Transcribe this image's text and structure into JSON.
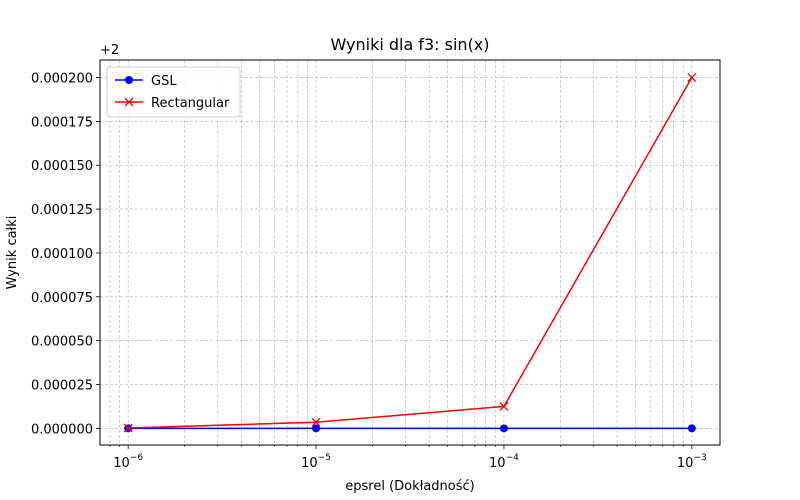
{
  "chart_data": {
    "type": "line",
    "title": "Wyniki dla f3: sin(x)",
    "xlabel": "epsrel (Dokładność)",
    "ylabel": "Wynik całki",
    "xscale": "log",
    "x": [
      1e-06,
      1e-05,
      0.0001,
      0.001
    ],
    "xticks": [
      {
        "base": "10",
        "exp": "−6"
      },
      {
        "base": "10",
        "exp": "−5"
      },
      {
        "base": "10",
        "exp": "−4"
      },
      {
        "base": "10",
        "exp": "−3"
      }
    ],
    "y_offset_label": "+2",
    "ylim": [
      -9.5e-06,
      0.00021
    ],
    "yticks": [
      {
        "value": 0.0,
        "label": "0.000000"
      },
      {
        "value": 2.5e-05,
        "label": "0.000025"
      },
      {
        "value": 5e-05,
        "label": "0.000050"
      },
      {
        "value": 7.5e-05,
        "label": "0.000075"
      },
      {
        "value": 0.0001,
        "label": "0.000100"
      },
      {
        "value": 0.000125,
        "label": "0.000125"
      },
      {
        "value": 0.00015,
        "label": "0.000150"
      },
      {
        "value": 0.000175,
        "label": "0.000175"
      },
      {
        "value": 0.0002,
        "label": "0.000200"
      }
    ],
    "grid": true,
    "legend_position": "top-left",
    "series": [
      {
        "name": "GSL",
        "color": "#0000ff",
        "marker": "circle",
        "values": [
          0.0,
          0.0,
          0.0,
          0.0
        ]
      },
      {
        "name": "Rectangular",
        "color": "#ff0000",
        "marker": "x",
        "values": [
          2e-07,
          3.5e-06,
          1.25e-05,
          0.0002
        ]
      }
    ]
  }
}
